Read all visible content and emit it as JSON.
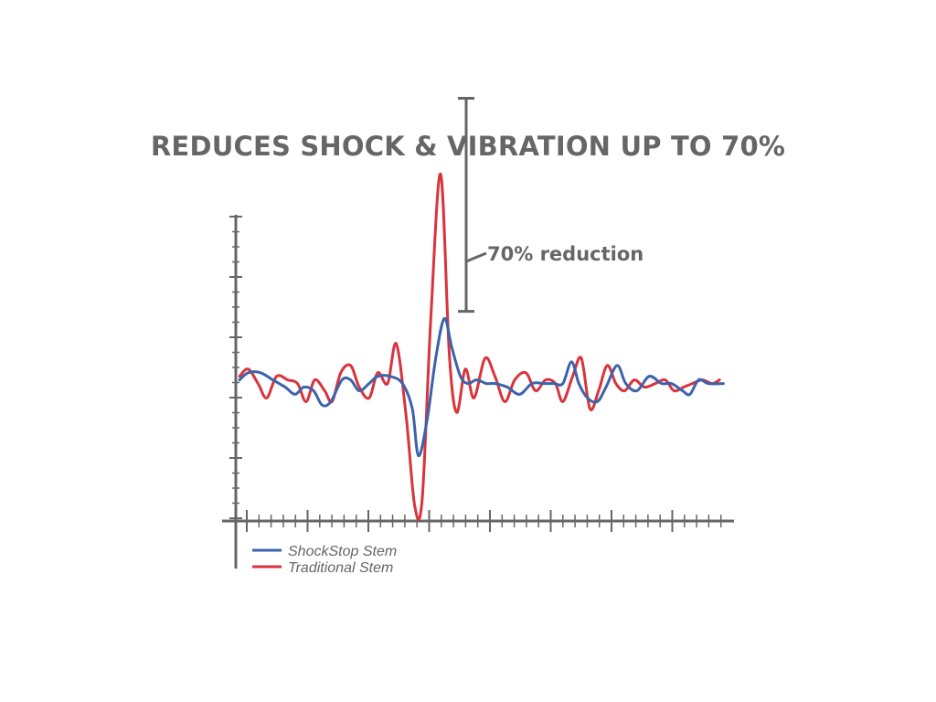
{
  "chart_data": {
    "type": "line",
    "title": "REDUCES SHOCK & VIBRATION UP TO 70%",
    "xlabel": "",
    "ylabel": "",
    "xlim": [
      0,
      40
    ],
    "ylim": [
      -5,
      5
    ],
    "annotation": {
      "text": "70% reduction",
      "from_value": 8.1,
      "to_value": 2.2
    },
    "legend_position": "bottom-left",
    "series": [
      {
        "name": "ShockStop Stem",
        "color": "#3b63ab",
        "points": [
          [
            0.3,
            0.3
          ],
          [
            1.0,
            0.5
          ],
          [
            2.0,
            0.5
          ],
          [
            3.0,
            0.3
          ],
          [
            4.0,
            0.1
          ],
          [
            4.8,
            -0.1
          ],
          [
            5.5,
            0.1
          ],
          [
            6.3,
            0.0
          ],
          [
            7.0,
            -0.4
          ],
          [
            7.7,
            -0.3
          ],
          [
            8.6,
            0.3
          ],
          [
            9.3,
            0.3
          ],
          [
            10.0,
            0.0
          ],
          [
            10.8,
            0.2
          ],
          [
            11.5,
            0.4
          ],
          [
            12.5,
            0.4
          ],
          [
            13.5,
            0.2
          ],
          [
            14.3,
            -0.5
          ],
          [
            14.8,
            -1.8
          ],
          [
            15.5,
            -0.8
          ],
          [
            16.2,
            0.9
          ],
          [
            16.9,
            2.0
          ],
          [
            17.5,
            1.2
          ],
          [
            18.2,
            0.4
          ],
          [
            18.8,
            0.2
          ],
          [
            19.5,
            0.3
          ],
          [
            20.3,
            0.2
          ],
          [
            21.0,
            0.2
          ],
          [
            22.0,
            0.1
          ],
          [
            23.0,
            -0.1
          ],
          [
            24.0,
            0.2
          ],
          [
            25.0,
            0.2
          ],
          [
            25.8,
            0.2
          ],
          [
            26.5,
            0.2
          ],
          [
            27.2,
            0.8
          ],
          [
            27.8,
            0.2
          ],
          [
            28.5,
            -0.2
          ],
          [
            29.3,
            -0.3
          ],
          [
            30.0,
            0.1
          ],
          [
            30.9,
            0.7
          ],
          [
            31.6,
            0.2
          ],
          [
            32.5,
            0.0
          ],
          [
            33.5,
            0.4
          ],
          [
            34.5,
            0.2
          ],
          [
            35.3,
            0.2
          ],
          [
            36.2,
            0.0
          ],
          [
            36.8,
            -0.1
          ],
          [
            37.5,
            0.3
          ],
          [
            38.3,
            0.2
          ],
          [
            39.5,
            0.2
          ]
        ]
      },
      {
        "name": "Traditional Stem",
        "color": "#d9333c",
        "points": [
          [
            0.3,
            0.4
          ],
          [
            1.0,
            0.6
          ],
          [
            1.8,
            0.2
          ],
          [
            2.5,
            -0.2
          ],
          [
            3.3,
            0.4
          ],
          [
            4.2,
            0.3
          ],
          [
            5.0,
            0.2
          ],
          [
            5.7,
            -0.3
          ],
          [
            6.4,
            0.3
          ],
          [
            7.2,
            0.0
          ],
          [
            7.8,
            -0.3
          ],
          [
            8.5,
            0.5
          ],
          [
            9.3,
            0.7
          ],
          [
            10.0,
            0.1
          ],
          [
            10.8,
            -0.2
          ],
          [
            11.5,
            0.5
          ],
          [
            12.3,
            0.2
          ],
          [
            13.0,
            1.3
          ],
          [
            13.8,
            -0.7
          ],
          [
            14.5,
            -3.2
          ],
          [
            15.1,
            -3.0
          ],
          [
            15.8,
            2.0
          ],
          [
            16.6,
            6.0
          ],
          [
            17.3,
            1.0
          ],
          [
            17.9,
            -0.6
          ],
          [
            18.6,
            0.6
          ],
          [
            19.3,
            -0.2
          ],
          [
            20.2,
            0.9
          ],
          [
            21.0,
            0.4
          ],
          [
            21.8,
            -0.3
          ],
          [
            22.6,
            0.3
          ],
          [
            23.5,
            0.5
          ],
          [
            24.3,
            0.0
          ],
          [
            25.1,
            0.3
          ],
          [
            25.9,
            0.2
          ],
          [
            26.5,
            -0.3
          ],
          [
            27.3,
            0.4
          ],
          [
            28.0,
            0.9
          ],
          [
            28.7,
            -0.5
          ],
          [
            29.4,
            0.0
          ],
          [
            30.1,
            0.7
          ],
          [
            30.8,
            0.2
          ],
          [
            31.5,
            0.0
          ],
          [
            32.3,
            0.3
          ],
          [
            33.1,
            0.1
          ],
          [
            34.0,
            0.2
          ],
          [
            34.8,
            0.3
          ],
          [
            35.5,
            0.0
          ],
          [
            36.3,
            0.1
          ],
          [
            37.0,
            0.2
          ],
          [
            37.8,
            0.3
          ],
          [
            38.6,
            0.2
          ],
          [
            39.2,
            0.3
          ]
        ]
      }
    ]
  },
  "page": {
    "axis_color": "#666666",
    "text_color": "#666666"
  }
}
